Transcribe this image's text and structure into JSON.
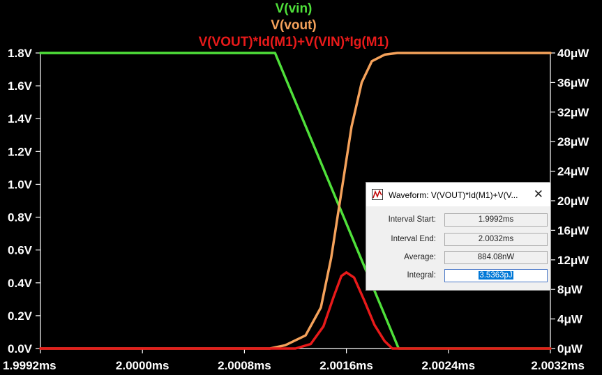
{
  "legend": [
    {
      "label": "V(vin)",
      "color": "#4fe03a"
    },
    {
      "label": "V(vout)",
      "color": "#f5a25b"
    },
    {
      "label": "V(VOUT)*Id(M1)+V(VIN)*Ig(M1)",
      "color": "#e81a1a"
    }
  ],
  "chart_data": {
    "type": "line",
    "x_ticks": [
      "1.9992ms",
      "2.0000ms",
      "2.0008ms",
      "2.0016ms",
      "2.0024ms",
      "2.0032ms"
    ],
    "y_left_ticks": [
      "0.0V",
      "0.2V",
      "0.4V",
      "0.6V",
      "0.8V",
      "1.0V",
      "1.2V",
      "1.4V",
      "1.6V",
      "1.8V"
    ],
    "y_right_ticks": [
      "0μW",
      "4μW",
      "8μW",
      "12μW",
      "16μW",
      "20μW",
      "24μW",
      "28μW",
      "32μW",
      "36μW",
      "40μW"
    ],
    "xlim_ms": [
      1.9992,
      2.0032
    ],
    "ylim_left_V": [
      0,
      1.8
    ],
    "ylim_right_uW": [
      0,
      40
    ],
    "series": [
      {
        "name": "V(vin)",
        "axis": "left",
        "color": "#4fe03a",
        "x_ms": [
          1.9992,
          2.00104,
          2.00201,
          2.0032
        ],
        "y": [
          1.8,
          1.8,
          0.0,
          0.0
        ]
      },
      {
        "name": "V(vout)",
        "axis": "left",
        "color": "#f5a25b",
        "x_ms": [
          1.9992,
          2.001,
          2.00112,
          2.00128,
          2.0014,
          2.00148,
          2.00156,
          2.00164,
          2.00172,
          2.0018,
          2.0019,
          2.002,
          2.0032
        ],
        "y": [
          0.0,
          0.0,
          0.02,
          0.08,
          0.25,
          0.55,
          0.95,
          1.35,
          1.62,
          1.75,
          1.79,
          1.8,
          1.8
        ]
      },
      {
        "name": "V(VOUT)*Id(M1)+V(VIN)*Ig(M1)",
        "axis": "right",
        "color": "#e81a1a",
        "x_ms": [
          1.9992,
          2.0012,
          2.00132,
          2.00142,
          2.0015,
          2.00156,
          2.0016,
          2.00166,
          2.00174,
          2.00182,
          2.0019,
          2.00196,
          2.0032
        ],
        "y": [
          0,
          0,
          0.6,
          3.0,
          7.0,
          9.8,
          10.3,
          9.6,
          6.5,
          3.2,
          1.0,
          0,
          0
        ]
      }
    ]
  },
  "dialog": {
    "title": "Waveform: V(VOUT)*Id(M1)+V(V...",
    "close": "✕",
    "interval_start_label": "Interval Start:",
    "interval_start_value": "1.9992ms",
    "interval_end_label": "Interval End:",
    "interval_end_value": "2.0032ms",
    "average_label": "Average:",
    "average_value": "884.08nW",
    "integral_label": "Integral:",
    "integral_value": "3.5363pJ"
  }
}
